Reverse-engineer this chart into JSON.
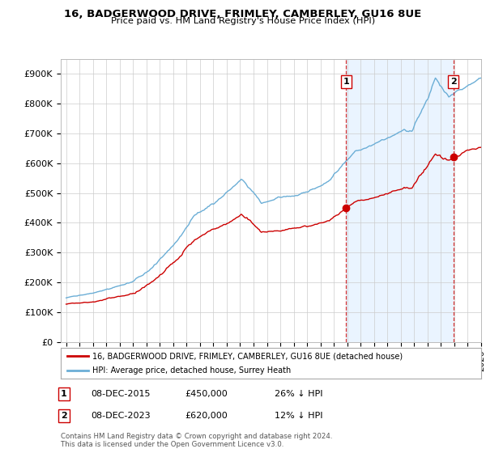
{
  "title": "16, BADGERWOOD DRIVE, FRIMLEY, CAMBERLEY, GU16 8UE",
  "subtitle": "Price paid vs. HM Land Registry's House Price Index (HPI)",
  "hpi_color": "#6baed6",
  "price_color": "#cc0000",
  "marker_color": "#cc0000",
  "shade_color": "#ddeeff",
  "ylim": [
    0,
    950000
  ],
  "yticks": [
    0,
    100000,
    200000,
    300000,
    400000,
    500000,
    600000,
    700000,
    800000,
    900000
  ],
  "ytick_labels": [
    "£0",
    "£100K",
    "£200K",
    "£300K",
    "£400K",
    "£500K",
    "£600K",
    "£700K",
    "£800K",
    "£900K"
  ],
  "transaction1_date": "08-DEC-2015",
  "transaction1_price": 450000,
  "transaction1_hpi_diff": "26% ↓ HPI",
  "transaction2_date": "08-DEC-2023",
  "transaction2_price": 620000,
  "transaction2_hpi_diff": "12% ↓ HPI",
  "legend_label1": "16, BADGERWOOD DRIVE, FRIMLEY, CAMBERLEY, GU16 8UE (detached house)",
  "legend_label2": "HPI: Average price, detached house, Surrey Heath",
  "footnote": "Contains HM Land Registry data © Crown copyright and database right 2024.\nThis data is licensed under the Open Government Licence v3.0.",
  "x_start_year": 1995,
  "x_end_year": 2026,
  "transaction1_x": 2015.92,
  "transaction2_x": 2023.92
}
